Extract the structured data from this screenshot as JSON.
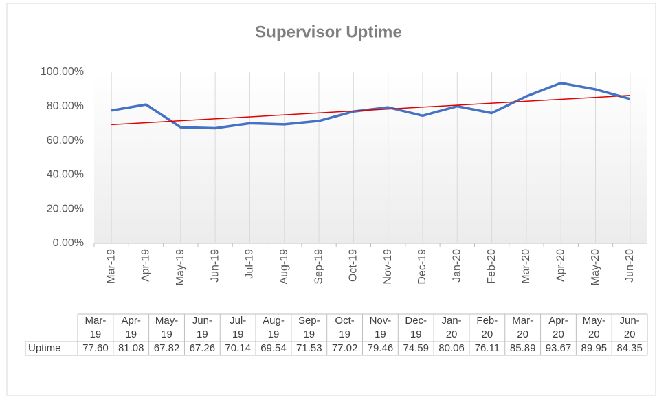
{
  "chart_data": {
    "type": "line",
    "title": "Supervisor Uptime",
    "categories": [
      "Mar-19",
      "Apr-19",
      "May-19",
      "Jun-19",
      "Jul-19",
      "Aug-19",
      "Sep-19",
      "Oct-19",
      "Nov-19",
      "Dec-19",
      "Jan-20",
      "Feb-20",
      "Mar-20",
      "Apr-20",
      "May-20",
      "Jun-20"
    ],
    "series": [
      {
        "name": "Uptime",
        "color": "#4472c4",
        "values": [
          77.6,
          81.08,
          67.82,
          67.26,
          70.14,
          69.54,
          71.53,
          77.02,
          79.46,
          74.59,
          80.06,
          76.11,
          85.89,
          93.67,
          89.95,
          84.35
        ],
        "value_labels": [
          "77.60",
          "81.08",
          "67.82",
          "67.26",
          "70.14",
          "69.54",
          "71.53",
          "77.02",
          "79.46",
          "74.59",
          "80.06",
          "76.11",
          "85.89",
          "93.67",
          "89.95",
          "84.35"
        ]
      }
    ],
    "ylim": [
      0,
      100
    ],
    "yticks": [
      {
        "value": 0,
        "label": "0.00%"
      },
      {
        "value": 20,
        "label": "20.00%"
      },
      {
        "value": 40,
        "label": "40.00%"
      },
      {
        "value": 60,
        "label": "60.00%"
      },
      {
        "value": 80,
        "label": "80.00%"
      },
      {
        "value": 100,
        "label": "100.00%"
      }
    ],
    "trendline": "linear",
    "trendline_color": "#e00000",
    "grid": true
  }
}
